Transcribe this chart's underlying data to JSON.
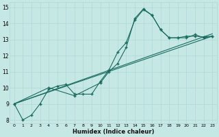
{
  "xlabel": "Humidex (Indice chaleur)",
  "bg_color": "#c5e8e5",
  "line_color": "#1a6b5e",
  "grid_color": "#b0d8d4",
  "xlim": [
    -0.5,
    23.5
  ],
  "ylim": [
    7.8,
    15.3
  ],
  "xticks": [
    0,
    1,
    2,
    3,
    4,
    5,
    6,
    7,
    8,
    9,
    10,
    11,
    12,
    13,
    14,
    15,
    16,
    17,
    18,
    19,
    20,
    21,
    22,
    23
  ],
  "yticks": [
    8,
    9,
    10,
    11,
    12,
    13,
    14,
    15
  ],
  "line1_x": [
    0,
    1,
    2,
    3,
    4,
    5,
    6,
    7,
    8,
    9,
    10,
    11,
    12,
    13,
    14,
    15,
    16,
    17,
    18,
    19,
    20,
    21,
    22,
    23
  ],
  "line1_y": [
    9.0,
    8.0,
    8.3,
    9.0,
    9.9,
    10.1,
    10.2,
    9.6,
    9.6,
    9.6,
    10.4,
    11.1,
    12.2,
    12.8,
    14.2,
    14.85,
    14.5,
    13.6,
    13.1,
    13.1,
    13.2,
    13.2,
    13.15,
    13.2
  ],
  "line2_x": [
    0,
    4,
    7,
    10,
    11,
    12,
    13,
    14,
    15,
    16,
    17,
    18,
    19,
    20,
    21,
    22,
    23
  ],
  "line2_y": [
    9.0,
    10.0,
    9.5,
    10.3,
    11.0,
    11.5,
    12.5,
    14.3,
    14.9,
    14.5,
    13.6,
    13.1,
    13.1,
    13.1,
    13.3,
    13.1,
    13.2
  ],
  "line3_x": [
    0,
    23
  ],
  "line3_y": [
    9.0,
    13.2
  ],
  "line4_x": [
    0,
    23
  ],
  "line4_y": [
    9.0,
    13.2
  ]
}
